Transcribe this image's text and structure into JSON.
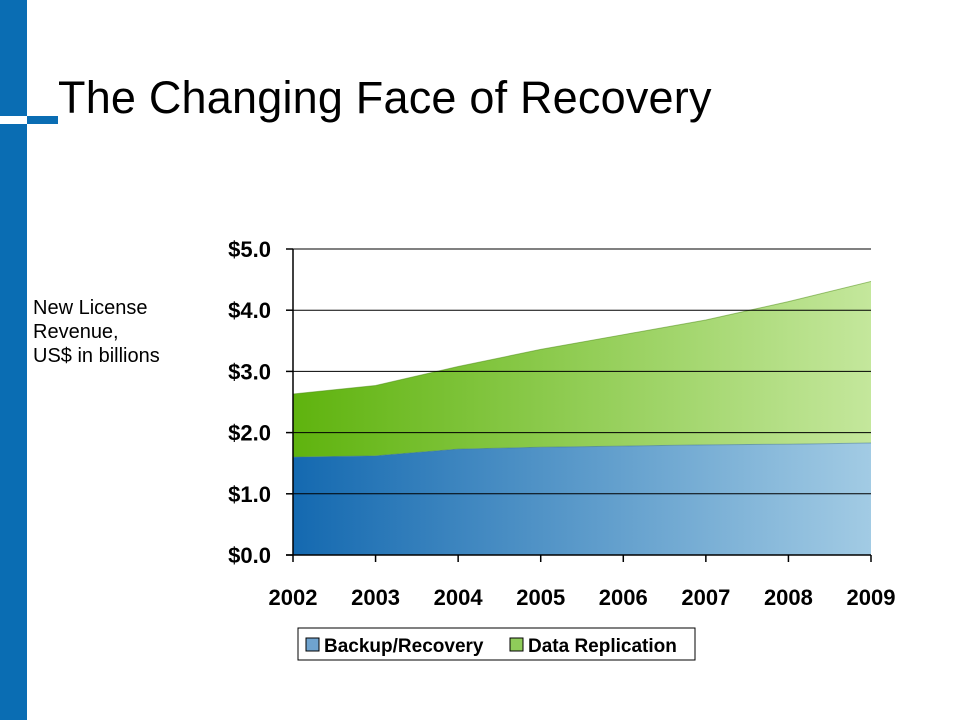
{
  "slide": {
    "title": "The Changing Face of Recovery"
  },
  "y_caption": [
    "New License",
    "Revenue,",
    "US$ in billions"
  ],
  "colors": {
    "side_bar": "#0a6db3",
    "backup_start": "#1469b0",
    "backup_end": "#a2cbe4",
    "replication_start": "#5fb30e",
    "replication_end": "#c4e79c",
    "gridline": "#000000"
  },
  "chart_data": {
    "type": "area",
    "stacked": true,
    "x": [
      "2002",
      "2003",
      "2004",
      "2005",
      "2006",
      "2007",
      "2008",
      "2009"
    ],
    "series": [
      {
        "name": "Backup/Recovery",
        "values": [
          1.6,
          1.62,
          1.73,
          1.76,
          1.78,
          1.8,
          1.81,
          1.83
        ]
      },
      {
        "name": "Data Replication",
        "values": [
          1.03,
          1.15,
          1.35,
          1.6,
          1.82,
          2.04,
          2.33,
          2.64
        ]
      }
    ],
    "yticks": [
      "$0.0",
      "$1.0",
      "$2.0",
      "$3.0",
      "$4.0",
      "$5.0"
    ],
    "ylim": [
      0,
      5
    ],
    "grid": "horizontal",
    "legend": "bottom"
  }
}
